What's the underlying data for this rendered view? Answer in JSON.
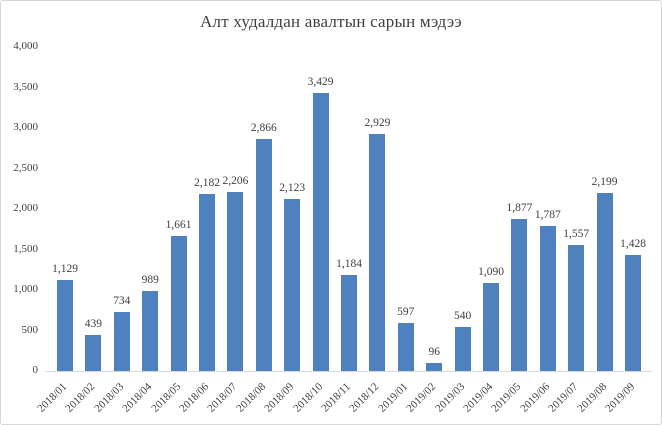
{
  "chart_data": {
    "type": "bar",
    "title": "Алт худалдан авалтын сарын мэдээ",
    "categories": [
      "2018/01",
      "2018/02",
      "2018/03",
      "2018/04",
      "2018/05",
      "2018/06",
      "2018/07",
      "2018/08",
      "2018/09",
      "2018/10",
      "2018/11",
      "2018/12",
      "2019/01",
      "2019/02",
      "2019/03",
      "2019/04",
      "2019/05",
      "2019/06",
      "2019/07",
      "2019/08",
      "2019/09"
    ],
    "values": [
      1129,
      439,
      734,
      989,
      1661,
      2182,
      2206,
      2866,
      2123,
      3429,
      1184,
      2929,
      597,
      96,
      540,
      1090,
      1877,
      1787,
      1557,
      2199,
      1428
    ],
    "value_labels": [
      "1,129",
      "439",
      "734",
      "989",
      "1,661",
      "2,182",
      "2,206",
      "2,866",
      "2,123",
      "3,429",
      "1,184",
      "2,929",
      "597",
      "96",
      "540",
      "1,090",
      "1,877",
      "1,787",
      "1,557",
      "2,199",
      "1,428"
    ],
    "ytick_labels": [
      "0",
      "500",
      "1,000",
      "1,500",
      "2,000",
      "2,500",
      "3,000",
      "3,500",
      "4,000"
    ],
    "xlabel": "",
    "ylabel": "",
    "ylim": [
      0,
      4000
    ],
    "ytick_step": 500,
    "grid": false,
    "legend": "none",
    "data_labels": true,
    "bar_color": "#4e81bd",
    "axis_line_color": "#d9d9d9",
    "text_color": "#404040",
    "border_color": "#d7d7d7"
  }
}
